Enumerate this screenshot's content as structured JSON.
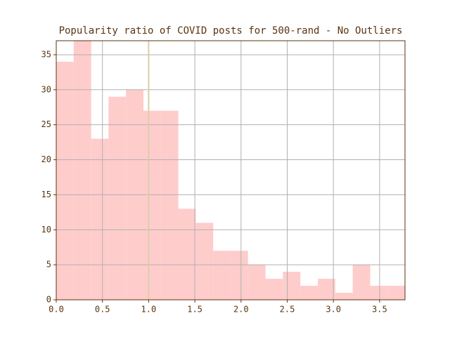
{
  "chart_data": {
    "type": "histogram",
    "title": "Popularity ratio of COVID posts for 500-rand - No Outliers",
    "bins": [
      0,
      0.189,
      0.378,
      0.566,
      0.755,
      0.944,
      1.133,
      1.321,
      1.51,
      1.699,
      1.888,
      2.076,
      2.265,
      2.454,
      2.643,
      2.831,
      3.02,
      3.209,
      3.398,
      3.586,
      3.775
    ],
    "values": [
      34,
      37,
      23,
      29,
      30,
      27,
      27,
      13,
      11,
      7,
      7,
      5,
      3,
      4,
      2,
      3,
      1,
      5,
      2,
      2
    ],
    "color": "#ffcccc",
    "vline": 1.0,
    "vline_color": "#d8cfa8",
    "xlim": [
      0,
      3.775
    ],
    "xticks": [
      {
        "value": 0,
        "label": "0.0"
      },
      0.5,
      {
        "value": 1,
        "label": "1.0"
      },
      1.5,
      {
        "value": 2,
        "label": "2.0"
      },
      2.5,
      {
        "value": 3,
        "label": "3.0"
      },
      3.5
    ],
    "ylim": [
      0,
      37
    ],
    "yticks": [
      0,
      5,
      10,
      15,
      20,
      25,
      30,
      35
    ],
    "grid": true
  }
}
